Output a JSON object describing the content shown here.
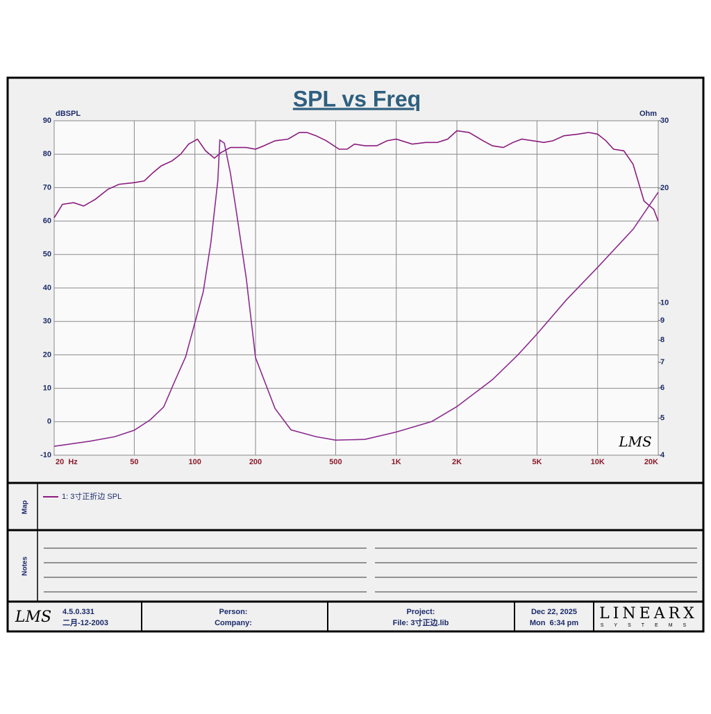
{
  "chart_data": {
    "type": "line",
    "title": "SPL vs Freq",
    "y_label": "dBSPL",
    "y2_label": "Ohm",
    "xscale": "log",
    "y2scale": "log",
    "grid": true,
    "xlim": [
      20,
      20000
    ],
    "ylim": [
      -10,
      90
    ],
    "y2lim": [
      4,
      30
    ],
    "xticks": [
      {
        "value": 20,
        "label": "20  Hz"
      },
      50,
      100,
      200,
      500,
      {
        "value": 1000,
        "label": "1K"
      },
      {
        "value": 2000,
        "label": "2K"
      },
      {
        "value": 5000,
        "label": "5K"
      },
      {
        "value": 10000,
        "label": "10K"
      },
      {
        "value": 20000,
        "label": "20K"
      }
    ],
    "yticks": [
      -10,
      0,
      10,
      20,
      30,
      40,
      50,
      60,
      70,
      80,
      90
    ],
    "y2ticks": [
      4,
      5,
      6,
      7,
      8,
      9,
      10,
      20,
      30
    ],
    "series": [
      {
        "name": "1: 3寸正折边 SPL",
        "color": "#8b1a7e",
        "x": [
          20,
          22,
          25,
          28,
          32,
          37,
          42,
          50,
          56,
          62,
          68,
          77,
          85,
          93,
          103,
          113,
          125,
          135,
          150,
          180,
          200,
          220,
          250,
          290,
          330,
          360,
          400,
          450,
          520,
          570,
          620,
          700,
          800,
          900,
          1000,
          1200,
          1400,
          1600,
          1800,
          2000,
          2300,
          2700,
          3000,
          3400,
          3800,
          4200,
          4800,
          5400,
          6000,
          6800,
          8000,
          9000,
          10000,
          11000,
          12000,
          13500,
          15000,
          17000,
          19000,
          20000
        ],
        "values": [
          61,
          65,
          65.5,
          64.5,
          66.5,
          69.5,
          71,
          71.5,
          72,
          74.5,
          76.5,
          78,
          80,
          83,
          84.5,
          81,
          78.8,
          80.5,
          82,
          82,
          81.5,
          82.5,
          84,
          84.5,
          86.5,
          86.5,
          85.5,
          84,
          81.5,
          81.5,
          83,
          82.5,
          82.5,
          84,
          84.5,
          83,
          83.5,
          83.5,
          84.5,
          87,
          86.5,
          84,
          82.5,
          82,
          83.5,
          84.5,
          84,
          83.5,
          84,
          85.5,
          86,
          86.5,
          86,
          84,
          81.5,
          81,
          77,
          66,
          63.5,
          60
        ]
      },
      {
        "color": "#8b2a8e",
        "axis": "y2",
        "x": [
          20,
          30,
          40,
          50,
          60,
          70,
          80,
          90,
          100,
          110,
          120,
          130,
          133,
          140,
          150,
          160,
          180,
          200,
          250,
          300,
          400,
          500,
          700,
          1000,
          1500,
          2000,
          3000,
          4000,
          5000,
          7000,
          10000,
          15000,
          20000
        ],
        "values": [
          4.22,
          4.35,
          4.47,
          4.65,
          4.95,
          5.35,
          6.3,
          7.24,
          8.89,
          10.7,
          14.4,
          20.9,
          26.7,
          26.2,
          21.9,
          17.6,
          11.6,
          7.2,
          5.3,
          4.66,
          4.47,
          4.38,
          4.4,
          4.6,
          4.9,
          5.36,
          6.3,
          7.3,
          8.3,
          10.2,
          12.4,
          15.6,
          19.5
        ]
      }
    ]
  },
  "plot_logo": "LMS",
  "map_label": "Map",
  "notes_label": "Notes",
  "footer": {
    "logo": "LMS",
    "version": "4.5.0.331",
    "version_date": "二月-12-2003",
    "person": "Person:",
    "company": "Company:",
    "project": "Project:",
    "file": "File: 3寸正边.lib",
    "date": "Dec 22, 2025",
    "time": "Mon  6:34 pm",
    "brand": "LINEARX",
    "brand_sub": "SYSTEMS"
  }
}
